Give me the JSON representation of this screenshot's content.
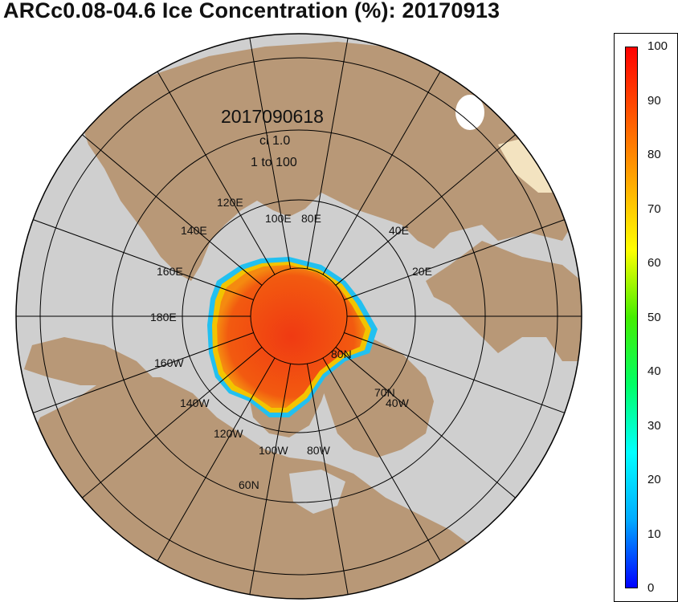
{
  "title": "ARCc0.08-04.6 Ice Concentration (%): 20170913",
  "map": {
    "date_label": "2017090618",
    "contour_interval": "ci 1.0",
    "range": "1 to 100",
    "longitude_labels": [
      "120E",
      "100E",
      "80E",
      "140E",
      "40E",
      "160E",
      "20E",
      "180E",
      "160W",
      "140W",
      "120W",
      "100W",
      "80W",
      "40W"
    ],
    "latitude_labels": [
      "80N",
      "70N",
      "60N"
    ],
    "colors": {
      "land": "#b89877",
      "ocean": "#cfcfcf",
      "ice_core": "#f13a10",
      "ice_edge": "#ffd200",
      "grid": "#000000"
    }
  },
  "colorbar": {
    "ticks": [
      "100",
      "90",
      "80",
      "70",
      "60",
      "50",
      "40",
      "30",
      "20",
      "10",
      "0"
    ],
    "min": 0,
    "max": 100,
    "colors": [
      "#0000ff",
      "#00aaff",
      "#00ffff",
      "#00ff66",
      "#44ee00",
      "#ffff00",
      "#ffaa00",
      "#ff5500",
      "#ff0000"
    ]
  }
}
